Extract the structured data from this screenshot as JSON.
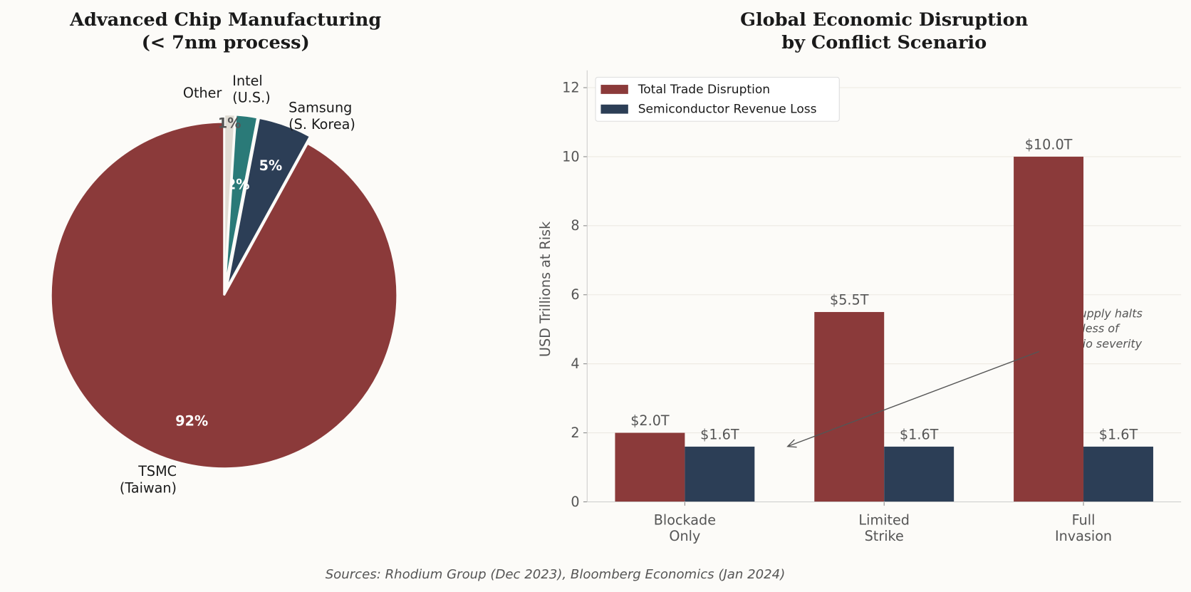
{
  "chart_data": [
    {
      "type": "pie",
      "title_lines": [
        "Advanced Chip Manufacturing",
        "(< 7nm process)"
      ],
      "slices": [
        {
          "label": [
            "TSMC",
            "(Taiwan)"
          ],
          "value": 92,
          "pct_label": "92%",
          "color": "#8b3a3a",
          "pct_color": "#ffffff"
        },
        {
          "label": [
            "Samsung",
            "(S. Korea)"
          ],
          "value": 5,
          "pct_label": "5%",
          "color": "#2c3e56",
          "pct_color": "#ffffff"
        },
        {
          "label": [
            "Intel",
            "(U.S.)"
          ],
          "value": 2,
          "pct_label": "2%",
          "color": "#2a7a78",
          "pct_color": "#ffffff"
        },
        {
          "label": [
            "Other"
          ],
          "value": 1,
          "pct_label": "1%",
          "color": "#e0dcd4",
          "pct_color": "#555555"
        }
      ],
      "start_angle": 90
    },
    {
      "type": "bar",
      "title_lines": [
        "Global Economic Disruption",
        "by Conflict Scenario"
      ],
      "categories": [
        [
          "Blockade",
          "Only"
        ],
        [
          "Limited",
          "Strike"
        ],
        [
          "Full",
          "Invasion"
        ]
      ],
      "series": [
        {
          "name": "Total Trade Disruption",
          "values": [
            2.0,
            5.5,
            10.0
          ],
          "labels": [
            "$2.0T",
            "$5.5T",
            "$10.0T"
          ],
          "color": "#8b3a3a"
        },
        {
          "name": "Semiconductor Revenue Loss",
          "values": [
            1.6,
            1.6,
            1.6
          ],
          "labels": [
            "$1.6T",
            "$1.6T",
            "$1.6T"
          ],
          "color": "#2c3e56"
        }
      ],
      "ylabel": "USD Trillions at Risk",
      "ylim": [
        0,
        12.5
      ],
      "yticks": [
        0,
        2,
        4,
        6,
        8,
        10,
        12
      ],
      "grid": "horizontal",
      "legend": "top-left",
      "annotation": {
        "text_lines": [
          "Chip supply halts",
          "regardless of",
          "scenario severity"
        ],
        "points_to": {
          "category": "Blockade Only",
          "y": 1.6
        }
      }
    }
  ],
  "source": "Sources: Rhodium Group (Dec 2023), Bloomberg Economics (Jan 2024)"
}
